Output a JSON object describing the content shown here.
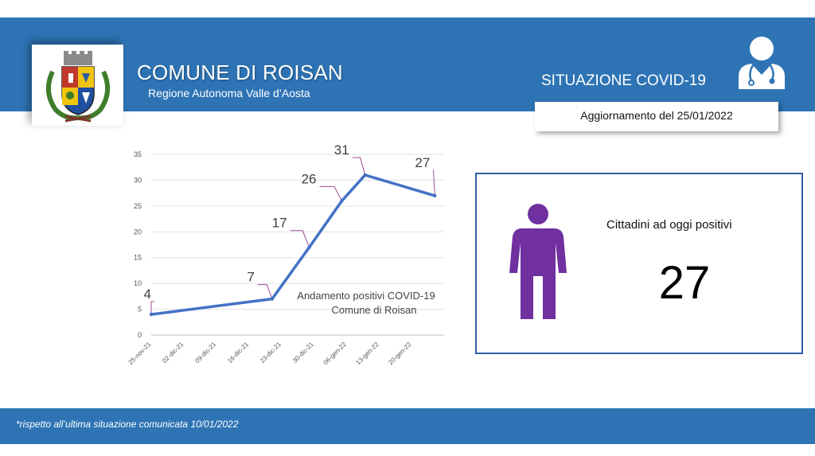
{
  "header": {
    "title": "COMUNE DI ROISAN",
    "subtitle": "Regione Autonoma Valle d’Aosta",
    "covid_title": "SITUAZIONE COVID-19",
    "update_label": "Aggiornamento del  25/01/2022",
    "accent_color": "#2e74b5"
  },
  "panel": {
    "label": "Cittadini ad oggi positivi",
    "value": "27",
    "icon": "person-icon",
    "icon_color": "#7030a0"
  },
  "footer": {
    "note": "*rispetto all’ultima situazione comunicata 10/01/2022"
  },
  "chart_data": {
    "type": "line",
    "title": "Andamento positivi COVID-19\nComune di Roisan",
    "x_ticks": [
      "25-nov-21",
      "02-dic-21",
      "09-dic-21",
      "16-dic-21",
      "23-dic-21",
      "30-dic-21",
      "06-gen-22",
      "13-gen-22",
      "20-gen-22"
    ],
    "xlim": [
      "2021-11-25",
      "2022-01-27"
    ],
    "points": [
      {
        "x": "2021-11-25",
        "y": 4,
        "label": "4"
      },
      {
        "x": "2021-12-21",
        "y": 7,
        "label": "7"
      },
      {
        "x": "2021-12-29",
        "y": 17,
        "label": "17"
      },
      {
        "x": "2022-01-05",
        "y": 26,
        "label": "26"
      },
      {
        "x": "2022-01-10",
        "y": 31,
        "label": "31"
      },
      {
        "x": "2022-01-25",
        "y": 27,
        "label": "27"
      }
    ],
    "y_ticks": [
      0,
      5,
      10,
      15,
      20,
      25,
      30,
      35
    ],
    "ylim": [
      0,
      35
    ],
    "grid": true,
    "line_color": "#4472c4",
    "label_leader_color": "#a0499a"
  }
}
